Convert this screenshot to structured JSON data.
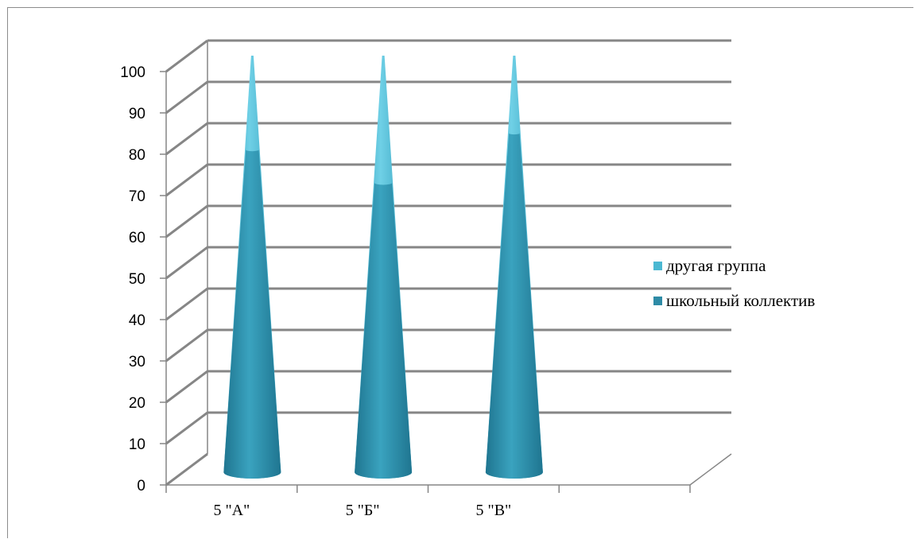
{
  "chart_data": {
    "type": "bar",
    "shape": "3d-cone",
    "categories": [
      "5 \"А\"",
      "5 \"Б\"",
      "5 \"В\""
    ],
    "series": [
      {
        "name": "другая группа",
        "values": [
          100,
          100,
          100
        ],
        "color": "#4BB8D2"
      },
      {
        "name": "школьный коллектив",
        "values": [
          78,
          70,
          82
        ],
        "color": "#2E8BA6"
      }
    ],
    "y_ticks": [
      "0",
      "10",
      "20",
      "30",
      "40",
      "50",
      "60",
      "70",
      "80",
      "90",
      "100"
    ],
    "ylim": [
      0,
      100
    ],
    "grid": true,
    "legend_position": "right"
  }
}
